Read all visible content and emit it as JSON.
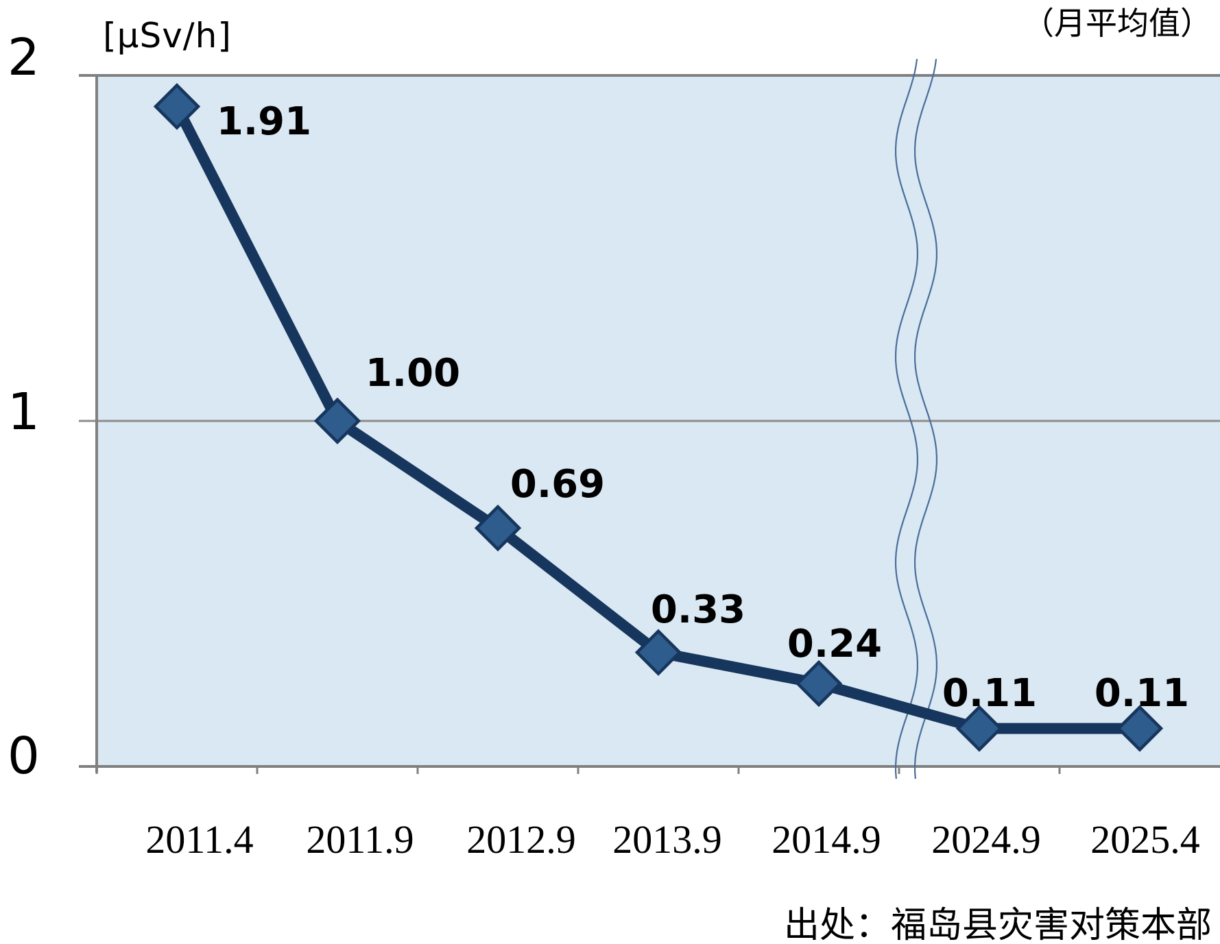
{
  "chart_data": {
    "type": "line",
    "unit_label": "[μSv/h]",
    "note": "（月平均值）",
    "source": "出处：福岛县灾害对策本部",
    "categories": [
      "2011.4",
      "2011.9",
      "2012.9",
      "2013.9",
      "2014.9",
      "2024.9",
      "2025.4"
    ],
    "values": [
      1.91,
      1.0,
      0.69,
      0.33,
      0.24,
      0.11,
      0.11
    ],
    "point_labels": [
      "1.91",
      "1.00",
      "0.69",
      "0.33",
      "0.24",
      "0.11",
      "0.11"
    ],
    "y_ticks": [
      "2",
      "1",
      "0"
    ],
    "ylim": [
      0,
      2
    ],
    "grid_values": [
      1
    ],
    "axis_break_between": [
      "2014.9",
      "2024.9"
    ],
    "marker_shape": "diamond",
    "colors": {
      "line": "#17365d",
      "marker_fill": "#2e5c8c",
      "plot_bg": "#d9e8f2",
      "axis": "#808080",
      "gridline": "#8c8c8c",
      "break_line": "#4a6e9b",
      "text": "#000000"
    }
  }
}
